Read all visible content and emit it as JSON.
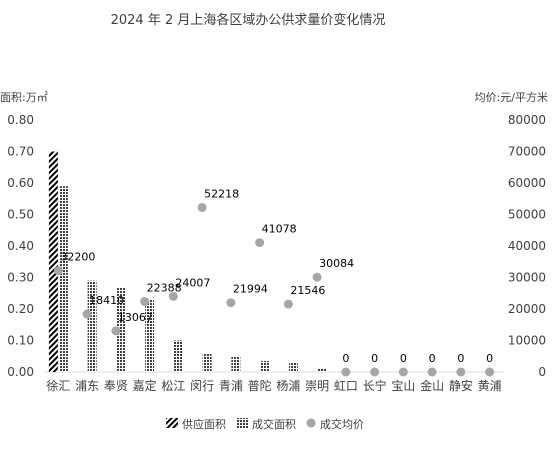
{
  "chart_data": {
    "type": "bar",
    "title": "2024 年 2 月上海各区域办公供求量价变化情况",
    "ylabel_left": "面积:万㎡",
    "ylabel_right": "均价:元/平方米",
    "ylim_left": [
      0,
      0.8
    ],
    "ylim_right": [
      0,
      80000
    ],
    "yticks_left": [
      "0.00",
      "0.10",
      "0.20",
      "0.30",
      "0.40",
      "0.50",
      "0.60",
      "0.70",
      "0.80"
    ],
    "yticks_right": [
      "0",
      "10000",
      "20000",
      "30000",
      "40000",
      "50000",
      "60000",
      "70000",
      "80000"
    ],
    "grid": false,
    "legend_position": "bottom",
    "categories": [
      "徐汇",
      "浦东",
      "奉贤",
      "嘉定",
      "松江",
      "闵行",
      "青浦",
      "普陀",
      "杨浦",
      "崇明",
      "虹口",
      "长宁",
      "宝山",
      "金山",
      "静安",
      "黄浦"
    ],
    "series": [
      {
        "name": "供应面积",
        "kind": "bar",
        "axis": "left",
        "values": [
          0.7,
          0,
          0,
          0,
          0,
          0,
          0,
          0,
          0,
          0,
          0,
          0,
          0,
          0,
          0,
          0
        ]
      },
      {
        "name": "成交面积",
        "kind": "bar",
        "axis": "left",
        "values": [
          0.59,
          0.29,
          0.27,
          0.23,
          0.1,
          0.06,
          0.05,
          0.035,
          0.03,
          0.01,
          0,
          0,
          0,
          0,
          0,
          0
        ]
      },
      {
        "name": "成交均价",
        "kind": "scatter",
        "axis": "right",
        "values": [
          32200,
          18410,
          13067,
          22388,
          24007,
          52218,
          21994,
          41078,
          21546,
          30084,
          0,
          0,
          0,
          0,
          0,
          0
        ],
        "labels": [
          "32200",
          "18410",
          "13067",
          "22388",
          "24007",
          "52218",
          "21994",
          "41078",
          "21546",
          "30084",
          "0",
          "0",
          "0",
          "0",
          "0",
          "0"
        ]
      }
    ],
    "colors": {
      "supply_bar": "#000000",
      "deal_bar": "#404040",
      "price_marker": "#a6a6a6",
      "text": "#404040",
      "axis_line": "#d9d9d9"
    }
  }
}
